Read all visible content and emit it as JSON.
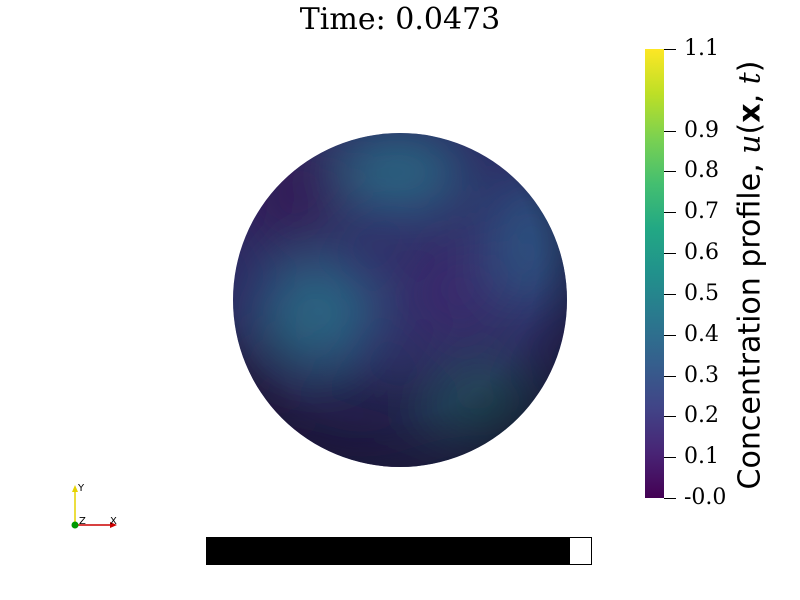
{
  "title": "Time: 0.0473",
  "colorbar": {
    "title_prefix": "Concentration profile, ",
    "title_u": "u",
    "title_open": "(",
    "title_x": "x",
    "title_sep": ", ",
    "title_t": "t",
    "title_close": ")",
    "min": -0.0,
    "max": 1.1,
    "colormap": "viridis",
    "ticks": [
      {
        "value": 1.1,
        "label": "1.1"
      },
      {
        "value": 0.9,
        "label": "0.9"
      },
      {
        "value": 0.8,
        "label": "0.8"
      },
      {
        "value": 0.7,
        "label": "0.7"
      },
      {
        "value": 0.6,
        "label": "0.6"
      },
      {
        "value": 0.5,
        "label": "0.5"
      },
      {
        "value": 0.4,
        "label": "0.4"
      },
      {
        "value": 0.3,
        "label": "0.3"
      },
      {
        "value": 0.2,
        "label": "0.2"
      },
      {
        "value": 0.1,
        "label": "0.1"
      },
      {
        "value": 0.0,
        "label": "-0.0"
      }
    ]
  },
  "axes": {
    "x_label": "X",
    "y_label": "Y",
    "z_label": "Z",
    "x_color": "#cc0000",
    "y_color": "#e6d200",
    "z_color": "#009900"
  },
  "progress": {
    "fraction": 0.945
  }
}
